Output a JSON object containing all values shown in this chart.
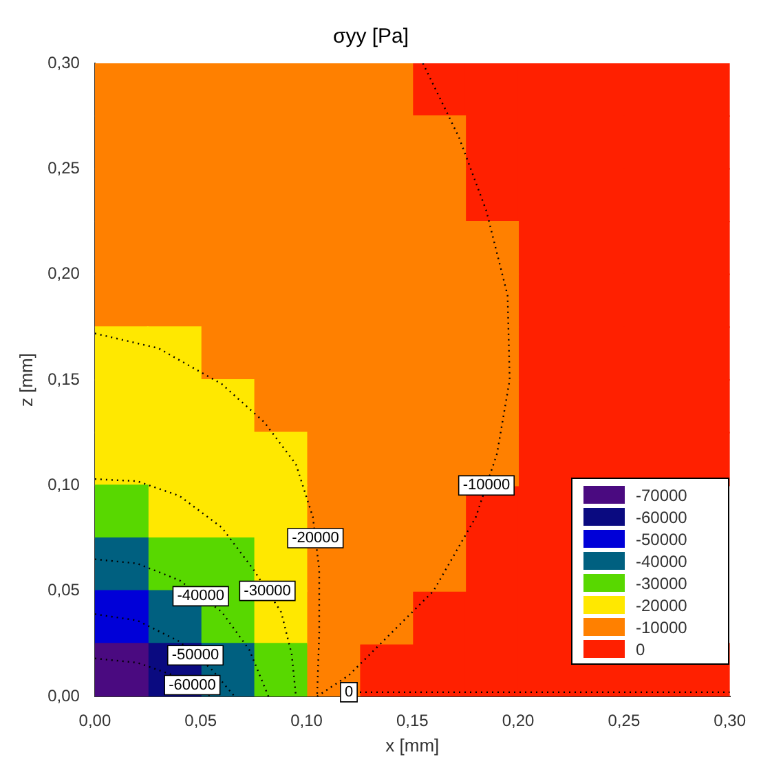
{
  "chart_data": {
    "type": "scatter",
    "title": "σyy [Pa]",
    "xlabel": "x [mm]",
    "ylabel": "z [mm]",
    "xlim": [
      0,
      0.3
    ],
    "ylim": [
      0,
      0.3
    ],
    "xticks": [
      {
        "value": 0,
        "label": "0,00"
      },
      {
        "value": 0.05,
        "label": "0,05"
      },
      {
        "value": 0.1,
        "label": "0,10"
      },
      {
        "value": 0.15,
        "label": "0,15"
      },
      {
        "value": 0.2,
        "label": "0,20"
      },
      {
        "value": 0.25,
        "label": "0,25"
      },
      {
        "value": 0.3,
        "label": "0,30"
      }
    ],
    "yticks": [
      {
        "value": 0,
        "label": "0,00"
      },
      {
        "value": 0.05,
        "label": "0,05"
      },
      {
        "value": 0.1,
        "label": "0,10"
      },
      {
        "value": 0.15,
        "label": "0,15"
      },
      {
        "value": 0.2,
        "label": "0,20"
      },
      {
        "value": 0.25,
        "label": "0,25"
      },
      {
        "value": 0.3,
        "label": "0,30"
      }
    ],
    "legend": "bottom right",
    "series": [
      {
        "type": "scatter",
        "marker": "square",
        "name": "-70000",
        "color": "#4a0a80",
        "x": [
          0.0125
        ],
        "values": [
          0.0125
        ]
      },
      {
        "type": "scatter",
        "marker": "square",
        "name": "-60000",
        "color": "#0a0a80",
        "x": [
          0.0375
        ],
        "values": [
          0.0125
        ]
      },
      {
        "type": "scatter",
        "marker": "square",
        "name": "-50000",
        "color": "#0000d8",
        "x": [
          0.0125
        ],
        "values": [
          0.0375
        ]
      },
      {
        "type": "scatter",
        "marker": "square",
        "name": "-40000",
        "color": "#006080",
        "x": [
          0.0125,
          0.0375,
          0.0625
        ],
        "values": [
          0.0625,
          0.0375,
          0.0125
        ]
      },
      {
        "type": "scatter",
        "marker": "square",
        "name": "-30000",
        "color": "#58d800",
        "x": [
          0.0125,
          0.0375,
          0.0625,
          0.0625,
          0.0875
        ],
        "values": [
          0.0875,
          0.0625,
          0.0625,
          0.0375,
          0.0125
        ]
      },
      {
        "type": "scatter",
        "marker": "square",
        "name": "-20000",
        "color": "#ffe800",
        "x": [
          0.0125,
          0.0375,
          0.0125,
          0.0375,
          0.0625,
          0.0125,
          0.0375,
          0.0625,
          0.0875,
          0.0375,
          0.0625,
          0.0875,
          0.0875,
          0.0875
        ],
        "values": [
          0.1625,
          0.1625,
          0.1375,
          0.1375,
          0.1375,
          0.1125,
          0.1125,
          0.1125,
          0.1125,
          0.0875,
          0.0875,
          0.0875,
          0.0625,
          0.0375
        ]
      },
      {
        "type": "scatter",
        "marker": "square",
        "name": "-10000",
        "color": "#ff8000",
        "x": [
          0.0125,
          0.0375,
          0.0625,
          0.0875,
          0.1125,
          0.1375,
          0.0125,
          0.0375,
          0.0625,
          0.0875,
          0.1125,
          0.1375,
          0.1625,
          0.0125,
          0.0375,
          0.0625,
          0.0875,
          0.1125,
          0.1375,
          0.1625,
          0.0125,
          0.0375,
          0.0625,
          0.0875,
          0.1125,
          0.1375,
          0.1625,
          0.1875,
          0.0125,
          0.0375,
          0.0625,
          0.0875,
          0.1125,
          0.1375,
          0.1625,
          0.1875,
          0.0625,
          0.0875,
          0.1125,
          0.1375,
          0.1625,
          0.1875,
          0.0875,
          0.1125,
          0.1375,
          0.1625,
          0.1875,
          0.1125,
          0.1375,
          0.1625,
          0.1875,
          0.1125,
          0.1375,
          0.1625,
          0.1125,
          0.1375,
          0.1625,
          0.1125,
          0.1375,
          0.1125
        ],
        "values": [
          0.2875,
          0.2875,
          0.2875,
          0.2875,
          0.2875,
          0.2875,
          0.2625,
          0.2625,
          0.2625,
          0.2625,
          0.2625,
          0.2625,
          0.2625,
          0.2375,
          0.2375,
          0.2375,
          0.2375,
          0.2375,
          0.2375,
          0.2375,
          0.2125,
          0.2125,
          0.2125,
          0.2125,
          0.2125,
          0.2125,
          0.2125,
          0.2125,
          0.1875,
          0.1875,
          0.1875,
          0.1875,
          0.1875,
          0.1875,
          0.1875,
          0.1875,
          0.1625,
          0.1625,
          0.1625,
          0.1625,
          0.1625,
          0.1625,
          0.1375,
          0.1375,
          0.1375,
          0.1375,
          0.1375,
          0.1125,
          0.1125,
          0.1125,
          0.1125,
          0.0875,
          0.0875,
          0.0875,
          0.0625,
          0.0625,
          0.0625,
          0.0375,
          0.0375,
          0.0125
        ]
      },
      {
        "type": "scatter",
        "marker": "square",
        "name": "0",
        "color": "#ff2000",
        "x": [
          0.1625,
          0.1875,
          0.2125,
          0.2375,
          0.2625,
          0.2875,
          0.1875,
          0.2125,
          0.2375,
          0.2625,
          0.2875,
          0.1875,
          0.2125,
          0.2375,
          0.2625,
          0.2875,
          0.2125,
          0.2375,
          0.2625,
          0.2875,
          0.2125,
          0.2375,
          0.2625,
          0.2875,
          0.2125,
          0.2375,
          0.2625,
          0.2875,
          0.2125,
          0.2375,
          0.2625,
          0.2875,
          0.2125,
          0.2375,
          0.2625,
          0.2875,
          0.1875,
          0.2125,
          0.1875,
          0.2125,
          0.1625,
          0.1875,
          0.2125,
          0.1375,
          0.1625,
          0.1875,
          0.2125,
          0.2375,
          0.2625,
          0.2875
        ],
        "values": [
          0.2875,
          0.2875,
          0.2875,
          0.2875,
          0.2875,
          0.2875,
          0.2625,
          0.2625,
          0.2625,
          0.2625,
          0.2625,
          0.2375,
          0.2375,
          0.2375,
          0.2375,
          0.2375,
          0.2125,
          0.2125,
          0.2125,
          0.2125,
          0.1875,
          0.1875,
          0.1875,
          0.1875,
          0.1625,
          0.1625,
          0.1625,
          0.1625,
          0.1375,
          0.1375,
          0.1375,
          0.1375,
          0.1125,
          0.1125,
          0.1125,
          0.1125,
          0.0875,
          0.0875,
          0.0625,
          0.0625,
          0.0375,
          0.0375,
          0.0375,
          0.0125,
          0.0125,
          0.0125,
          0.0125,
          0.0125,
          0.0125,
          0.0125
        ]
      },
      {
        "type": "line",
        "name": "-10000",
        "color": "#000000",
        "line_style": "dotted",
        "x": [
          0.105,
          0.12,
          0.14,
          0.16,
          0.18,
          0.19,
          0.196,
          0.195,
          0.185,
          0.172,
          0.155
        ],
        "values": [
          0,
          0.01,
          0.03,
          0.05,
          0.085,
          0.115,
          0.15,
          0.19,
          0.23,
          0.265,
          0.3
        ]
      },
      {
        "type": "line",
        "name": "-20000",
        "color": "#000000",
        "line_style": "dotted",
        "x": [
          0,
          0.03,
          0.06,
          0.08,
          0.095,
          0.103,
          0.106,
          0.106,
          0.105
        ],
        "values": [
          0.172,
          0.165,
          0.148,
          0.13,
          0.11,
          0.085,
          0.06,
          0.03,
          0
        ]
      },
      {
        "type": "line",
        "name": "-30000",
        "color": "#000000",
        "line_style": "dotted",
        "x": [
          0,
          0.02,
          0.04,
          0.06,
          0.075,
          0.088,
          0.093,
          0.095
        ],
        "values": [
          0.103,
          0.102,
          0.095,
          0.08,
          0.06,
          0.04,
          0.02,
          0
        ]
      },
      {
        "type": "line",
        "name": "-40000",
        "color": "#000000",
        "line_style": "dotted",
        "x": [
          0,
          0.02,
          0.04,
          0.06,
          0.073,
          0.082
        ],
        "values": [
          0.065,
          0.063,
          0.055,
          0.04,
          0.022,
          0
        ]
      },
      {
        "type": "line",
        "name": "-50000",
        "color": "#000000",
        "line_style": "dotted",
        "x": [
          0,
          0.02,
          0.04,
          0.055,
          0.066
        ],
        "values": [
          0.039,
          0.036,
          0.026,
          0.013,
          0
        ]
      },
      {
        "type": "line",
        "name": "-60000",
        "color": "#000000",
        "line_style": "dotted",
        "x": [
          0,
          0.02,
          0.04,
          0.055
        ],
        "values": [
          0.018,
          0.016,
          0.009,
          0
        ]
      },
      {
        "type": "line",
        "name": "0",
        "color": "#000000",
        "line_style": "dotted",
        "x": [
          0.12,
          0.2,
          0.225,
          0.3
        ],
        "values": [
          0.002,
          0.002,
          0.002,
          0.002
        ]
      }
    ]
  }
}
